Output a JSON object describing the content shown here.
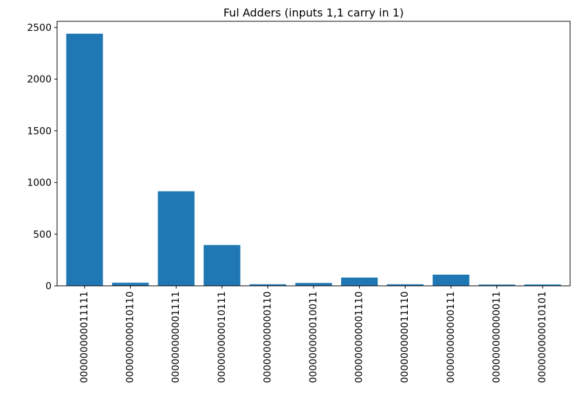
{
  "chart_data": {
    "type": "bar",
    "title": "Ful Adders (inputs 1,1 carry in 1)",
    "xlabel": "",
    "ylabel": "",
    "categories": [
      "000000000011111",
      "000000000010110",
      "000000000001111",
      "000000000010111",
      "000000000000110",
      "000000000010011",
      "000000000001110",
      "000000000011110",
      "000000000000111",
      "000000000000011",
      "000000000010101"
    ],
    "values": [
      2440,
      30,
      915,
      395,
      15,
      28,
      80,
      15,
      108,
      12,
      13
    ],
    "ylim": [
      0,
      2560
    ],
    "yticks": [
      0,
      500,
      1000,
      1500,
      2000,
      2500
    ],
    "bar_color": "#1f77b4",
    "grid": false,
    "legend": "none"
  }
}
